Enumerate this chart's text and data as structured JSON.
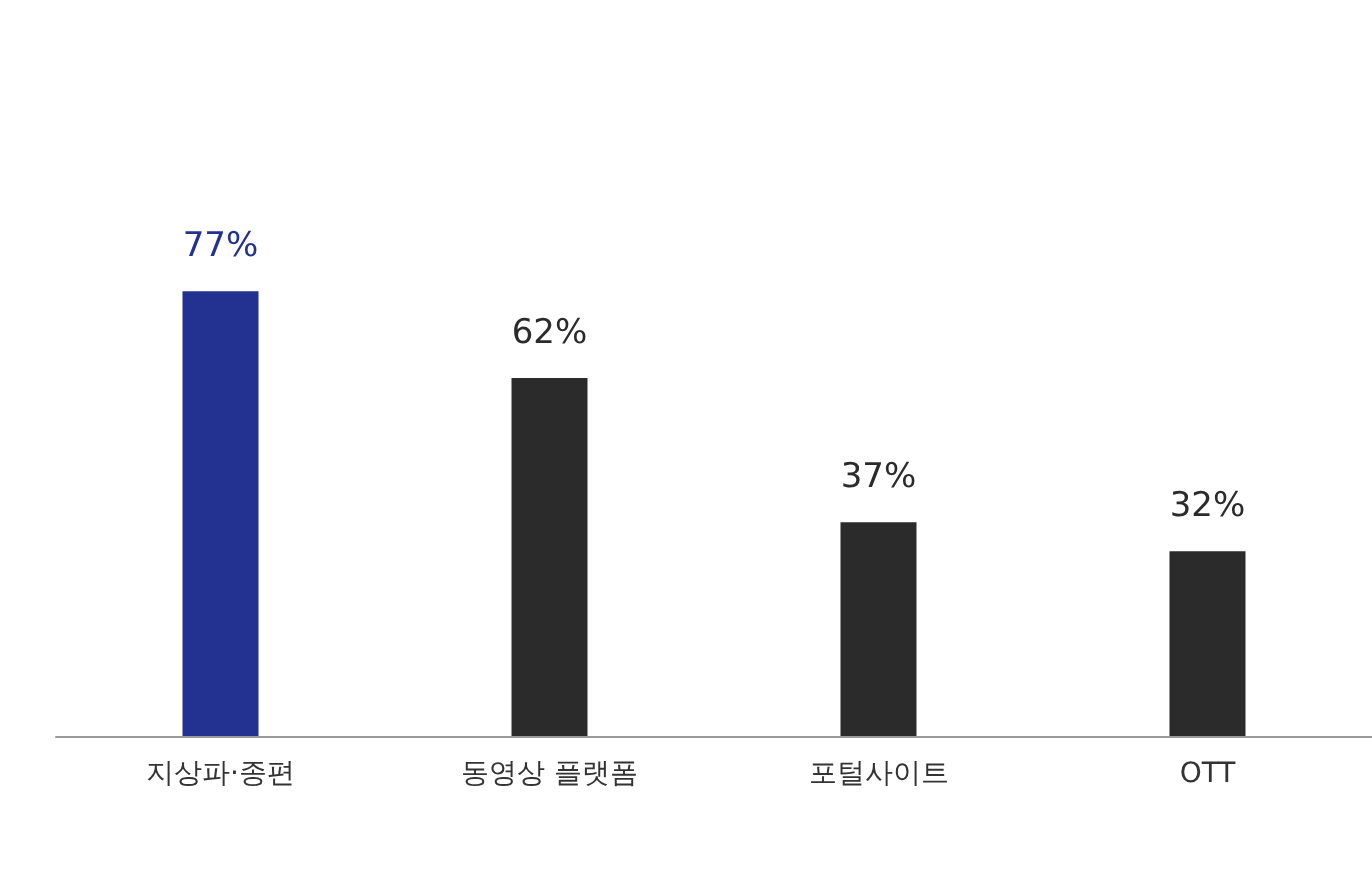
{
  "chart_data": {
    "type": "bar",
    "categories": [
      "지상파·종편",
      "동영상 플랫폼",
      "포털사이트",
      "OTT"
    ],
    "values": [
      77,
      62,
      37,
      32
    ],
    "value_labels": [
      "77%",
      "62%",
      "37%",
      "32%"
    ],
    "colors": [
      "#233190",
      "#2b2b2b",
      "#2b2b2b",
      "#2b2b2b"
    ],
    "tick_labels": "x",
    "grid": false
  }
}
